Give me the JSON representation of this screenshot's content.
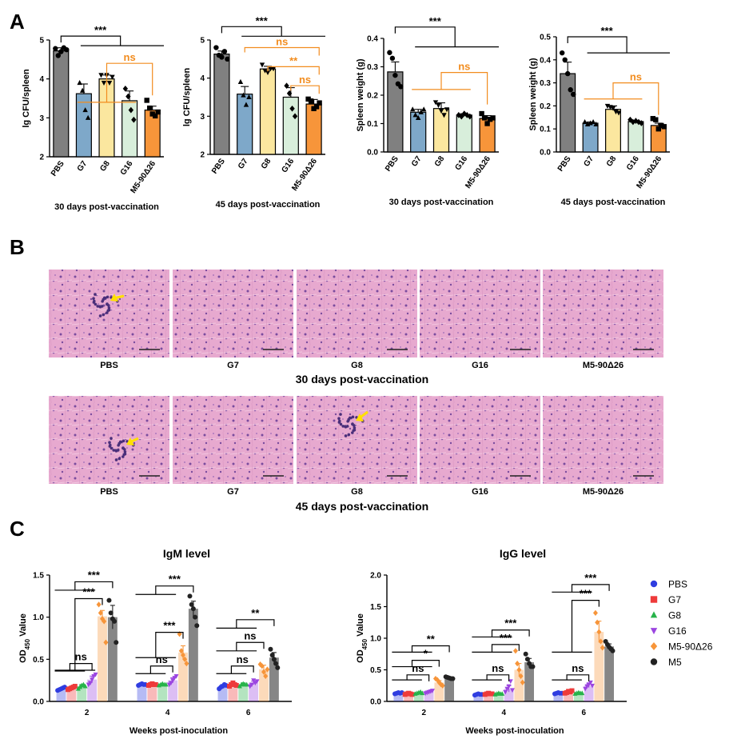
{
  "panels": {
    "a": "A",
    "b": "B",
    "c": "C"
  },
  "colors": {
    "PBS": "#808080",
    "G7": "#7ea8c9",
    "G8": "#fbe79f",
    "G16": "#d8eedb",
    "M5-90Δ26": "#f7953a",
    "orange": "#f28c1e",
    "black": "#000000",
    "c_PBS": "#2f3de0",
    "c_G7": "#ee3a3a",
    "c_G8": "#27b34a",
    "c_G16": "#9b45e0",
    "c_M5-90Δ26": "#f7953a",
    "c_M5": "#222222",
    "tissue": "#e6a6cf",
    "tissue_dark": "#6d4a9a",
    "arrow": "#ffe000"
  },
  "histology": {
    "groups": [
      "PBS",
      "G7",
      "G8",
      "G16",
      "M5-90Δ26"
    ],
    "row1_caption": "30 days post-vaccination",
    "row2_caption": "45 days post-vaccination",
    "lesion_frames": [
      "r1-PBS",
      "r2-PBS",
      "r2-G8"
    ]
  },
  "chart_data": [
    {
      "id": "a1",
      "type": "bar",
      "ylabel": "lg CFU/spleen",
      "caption": "30 days post-vaccination",
      "categories": [
        "PBS",
        "G7",
        "G8",
        "G16",
        "M5-90Δ26"
      ],
      "values": [
        4.72,
        3.62,
        4.0,
        3.44,
        3.2
      ],
      "errors": [
        0.08,
        0.25,
        0.1,
        0.25,
        0.1
      ],
      "points": [
        [
          4.78,
          4.6,
          4.7,
          4.8,
          4.75
        ],
        [
          3.9,
          3.7,
          3.2,
          3.0
        ],
        [
          4.1,
          3.9,
          4.1,
          3.9,
          4.05
        ],
        [
          3.75,
          3.55,
          3.2,
          2.95
        ],
        [
          3.45,
          3.25,
          3.1,
          3.05,
          3.15
        ]
      ],
      "markers": [
        "circle",
        "triangle",
        "invtriangle",
        "diamond",
        "square"
      ],
      "ylim": [
        2,
        5
      ],
      "yticks": [
        2,
        3,
        4,
        5
      ],
      "sig": [
        {
          "label": "***",
          "color": "black",
          "y": 5.1,
          "from": 0,
          "to": [
            1,
            2,
            3,
            4
          ]
        },
        {
          "label": "ns",
          "color": "orange",
          "y": 4.4,
          "from": 4,
          "to": [
            1,
            2,
            3
          ],
          "ly": 3.4
        }
      ]
    },
    {
      "id": "a2",
      "type": "bar",
      "ylabel": "lg CFU/spleen",
      "caption": "45 days post-vaccination",
      "categories": [
        "PBS",
        "G7",
        "G8",
        "G16",
        "M5-90Δ26"
      ],
      "values": [
        4.63,
        3.58,
        4.24,
        3.5,
        3.32
      ],
      "errors": [
        0.08,
        0.2,
        0.07,
        0.25,
        0.12
      ],
      "points": [
        [
          4.8,
          4.6,
          4.55,
          4.7,
          4.5
        ],
        [
          3.9,
          3.55,
          3.3,
          3.5
        ],
        [
          4.35,
          4.2,
          4.15,
          4.25,
          4.25
        ],
        [
          3.8,
          3.6,
          3.2,
          3.0
        ],
        [
          3.45,
          3.4,
          3.2,
          3.25,
          3.35
        ]
      ],
      "markers": [
        "circle",
        "triangle",
        "invtriangle",
        "diamond",
        "square"
      ],
      "ylim": [
        2,
        5
      ],
      "yticks": [
        2,
        3,
        4,
        5
      ],
      "sig": [
        {
          "label": "***",
          "color": "black",
          "y": 5.35,
          "from": 0,
          "to": [
            1,
            2,
            3,
            4
          ]
        },
        {
          "label": "ns",
          "color": "orange",
          "y": 4.8,
          "pair": [
            1,
            4
          ]
        },
        {
          "label": "**",
          "color": "orange",
          "y": 4.3,
          "pair": [
            2,
            4
          ]
        },
        {
          "label": "ns",
          "color": "orange",
          "y": 3.8,
          "pair": [
            3,
            4
          ]
        }
      ]
    },
    {
      "id": "a3",
      "type": "bar",
      "ylabel": "Spleen weight (g)",
      "caption": "30 days post-vaccination",
      "categories": [
        "PBS",
        "G7",
        "G8",
        "G16",
        "M5-90Δ26"
      ],
      "values": [
        0.282,
        0.14,
        0.153,
        0.13,
        0.118
      ],
      "errors": [
        0.035,
        0.01,
        0.02,
        0.005,
        0.01
      ],
      "points": [
        [
          0.35,
          0.33,
          0.27,
          0.24,
          0.23
        ],
        [
          0.15,
          0.13,
          0.12,
          0.14,
          0.15
        ],
        [
          0.175,
          0.165,
          0.145,
          0.13,
          0.15
        ],
        [
          0.13,
          0.125,
          0.135,
          0.13,
          0.125
        ],
        [
          0.135,
          0.12,
          0.1,
          0.115,
          0.12
        ]
      ],
      "markers": [
        "circle",
        "triangle",
        "invtriangle",
        "diamond",
        "square"
      ],
      "ylim": [
        0,
        0.4
      ],
      "yticks": [
        0.0,
        0.1,
        0.2,
        0.3,
        0.4
      ],
      "tickfmt": 1,
      "sig": [
        {
          "label": "***",
          "color": "black",
          "y": 0.44,
          "from": 0,
          "to": [
            1,
            2,
            3,
            4
          ],
          "ly": 0.37
        },
        {
          "label": "ns",
          "color": "orange",
          "y": 0.28,
          "from": 4,
          "to": [
            1,
            2,
            3
          ],
          "ly": 0.22
        }
      ]
    },
    {
      "id": "a4",
      "type": "bar",
      "ylabel": "Spleen weight (g)",
      "caption": "45 days post-vaccination",
      "categories": [
        "PBS",
        "G7",
        "G8",
        "G16",
        "M5-90Δ26"
      ],
      "values": [
        0.34,
        0.125,
        0.185,
        0.132,
        0.115
      ],
      "errors": [
        0.05,
        0.005,
        0.015,
        0.005,
        0.01
      ],
      "points": [
        [
          0.43,
          0.4,
          0.34,
          0.27,
          0.25
        ],
        [
          0.13,
          0.12,
          0.125,
          0.13,
          0.12
        ],
        [
          0.2,
          0.195,
          0.19,
          0.175,
          0.17
        ],
        [
          0.14,
          0.13,
          0.135,
          0.13,
          0.125
        ],
        [
          0.145,
          0.14,
          0.1,
          0.115,
          0.11
        ]
      ],
      "markers": [
        "circle",
        "triangle",
        "invtriangle",
        "diamond",
        "square"
      ],
      "ylim": [
        0,
        0.5
      ],
      "yticks": [
        0.0,
        0.1,
        0.2,
        0.3,
        0.4,
        0.5
      ],
      "tickfmt": 1,
      "sig": [
        {
          "label": "***",
          "color": "black",
          "y": 0.5,
          "from": 0,
          "to": [
            1,
            2,
            3,
            4
          ],
          "ly": 0.43
        },
        {
          "label": "ns",
          "color": "orange",
          "y": 0.3,
          "from": 4,
          "to": [
            1,
            2,
            3
          ],
          "ly": 0.23
        }
      ]
    },
    {
      "id": "c1",
      "type": "bar",
      "title": "IgM level",
      "ylabel": "OD450 Value",
      "ylabel_main": "OD",
      "ylabel_sub": "450",
      "ylabel_tail": " Value",
      "xlabel": "Weeks post-inoculation",
      "weeks": [
        "2",
        "4",
        "6"
      ],
      "series": [
        "PBS",
        "G7",
        "G8",
        "G16",
        "M5-90Δ26",
        "M5"
      ],
      "values": [
        [
          0.15,
          0.16,
          0.18,
          0.26,
          1.01,
          1.0
        ],
        [
          0.2,
          0.2,
          0.2,
          0.25,
          0.58,
          1.1
        ],
        [
          0.18,
          0.2,
          0.2,
          0.22,
          0.38,
          0.52
        ]
      ],
      "errors": [
        [
          0.01,
          0.02,
          0.02,
          0.04,
          0.07,
          0.14
        ],
        [
          0.01,
          0.01,
          0.01,
          0.03,
          0.08,
          0.09
        ],
        [
          0.02,
          0.02,
          0.02,
          0.02,
          0.05,
          0.06
        ]
      ],
      "points": [
        [
          [
            0.13,
            0.14,
            0.15,
            0.16,
            0.17
          ],
          [
            0.14,
            0.15,
            0.16,
            0.17,
            0.18
          ],
          [
            0.15,
            0.17,
            0.19,
            0.2,
            0.18
          ],
          [
            0.2,
            0.22,
            0.26,
            0.3,
            0.32
          ],
          [
            1.15,
            1.05,
            0.98,
            0.95,
            0.7
          ],
          [
            1.2,
            1.05,
            0.98,
            0.95,
            0.7
          ]
        ],
        [
          [
            0.19,
            0.2,
            0.21,
            0.2,
            0.2
          ],
          [
            0.19,
            0.2,
            0.21,
            0.2,
            0.2
          ],
          [
            0.19,
            0.2,
            0.21,
            0.2,
            0.2
          ],
          [
            0.2,
            0.22,
            0.25,
            0.28,
            0.3
          ],
          [
            0.8,
            0.6,
            0.55,
            0.5,
            0.45
          ],
          [
            1.25,
            1.15,
            1.1,
            1.0,
            0.9
          ]
        ],
        [
          [
            0.15,
            0.17,
            0.18,
            0.2,
            0.19
          ],
          [
            0.18,
            0.2,
            0.22,
            0.2,
            0.19
          ],
          [
            0.18,
            0.2,
            0.21,
            0.2,
            0.2
          ],
          [
            0.18,
            0.2,
            0.25,
            0.22,
            0.24
          ],
          [
            0.44,
            0.42,
            0.35,
            0.3,
            0.38
          ],
          [
            0.62,
            0.55,
            0.5,
            0.45,
            0.4
          ]
        ]
      ],
      "markers": [
        "circle",
        "square",
        "triangle",
        "invtriangle",
        "diamond",
        "circle"
      ],
      "ylim": [
        0,
        1.5
      ],
      "yticks": [
        0.0,
        0.5,
        1.0,
        1.5
      ],
      "tickfmt": 1,
      "sig": [
        {
          "week": 0,
          "label": "ns",
          "y": 0.45,
          "y_from": 0.36,
          "from": [
            0,
            1,
            2
          ],
          "to": 3
        },
        {
          "week": 0,
          "label": "***",
          "y": 1.22,
          "y_from": 0.37,
          "from": [
            0,
            1,
            2,
            3
          ],
          "to": 4
        },
        {
          "week": 0,
          "label": "***",
          "y": 1.42,
          "y_from": 1.32,
          "from": [
            0,
            1,
            2,
            3
          ],
          "to": 5
        },
        {
          "week": 1,
          "label": "ns",
          "y": 0.42,
          "y_from": 0.33,
          "from": [
            0,
            1,
            2
          ],
          "to": 3
        },
        {
          "week": 1,
          "label": "***",
          "y": 0.82,
          "y_from": 0.52,
          "from": [
            0,
            1,
            2,
            3
          ],
          "to": 4
        },
        {
          "week": 1,
          "label": "***",
          "y": 1.37,
          "y_from": 1.27,
          "from": [
            0,
            1,
            2,
            3
          ],
          "to": 5
        },
        {
          "week": 2,
          "label": "ns",
          "y": 0.42,
          "y_from": 0.33,
          "from": [
            0,
            1,
            2
          ],
          "to": 3
        },
        {
          "week": 2,
          "label": "ns",
          "y": 0.7,
          "y_from": 0.6,
          "from": [
            0,
            1,
            2,
            3
          ],
          "to": 4
        },
        {
          "week": 2,
          "label": "**",
          "y": 0.97,
          "y_from": 0.87,
          "from": [
            0,
            1,
            2,
            3
          ],
          "to": 5
        }
      ]
    },
    {
      "id": "c2",
      "type": "bar",
      "title": "IgG level",
      "ylabel": "OD450 Value",
      "ylabel_main": "OD",
      "ylabel_sub": "450",
      "ylabel_tail": " Value",
      "xlabel": "Weeks post-inoculation",
      "weeks": [
        "2",
        "4",
        "6"
      ],
      "series": [
        "PBS",
        "G7",
        "G8",
        "G16",
        "M5-90Δ26",
        "M5"
      ],
      "values": [
        [
          0.13,
          0.12,
          0.13,
          0.15,
          0.3,
          0.37
        ],
        [
          0.11,
          0.12,
          0.12,
          0.2,
          0.5,
          0.62
        ],
        [
          0.13,
          0.15,
          0.13,
          0.25,
          1.1,
          0.87
        ]
      ],
      "errors": [
        [
          0.01,
          0.01,
          0.01,
          0.01,
          0.03,
          0.02
        ],
        [
          0.01,
          0.01,
          0.01,
          0.05,
          0.1,
          0.06
        ],
        [
          0.01,
          0.02,
          0.01,
          0.03,
          0.17,
          0.04
        ]
      ],
      "points": [
        [
          [
            0.12,
            0.13,
            0.14,
            0.13,
            0.14
          ],
          [
            0.11,
            0.12,
            0.13,
            0.12,
            0.11
          ],
          [
            0.12,
            0.13,
            0.14,
            0.15,
            0.13
          ],
          [
            0.13,
            0.14,
            0.15,
            0.16,
            0.17
          ],
          [
            0.36,
            0.34,
            0.3,
            0.27,
            0.25
          ],
          [
            0.39,
            0.38,
            0.37,
            0.36,
            0.36
          ]
        ],
        [
          [
            0.1,
            0.11,
            0.12,
            0.11,
            0.11
          ],
          [
            0.11,
            0.12,
            0.13,
            0.12,
            0.12
          ],
          [
            0.11,
            0.12,
            0.13,
            0.12,
            0.12
          ],
          [
            0.15,
            0.2,
            0.24,
            0.32,
            0.18
          ],
          [
            0.8,
            0.6,
            0.5,
            0.4,
            0.3
          ],
          [
            0.75,
            0.67,
            0.6,
            0.55,
            0.55
          ]
        ],
        [
          [
            0.12,
            0.13,
            0.14,
            0.13,
            0.13
          ],
          [
            0.13,
            0.14,
            0.16,
            0.15,
            0.17
          ],
          [
            0.12,
            0.13,
            0.14,
            0.13,
            0.13
          ],
          [
            0.2,
            0.24,
            0.27,
            0.3,
            0.25
          ],
          [
            1.4,
            1.25,
            1.1,
            0.95,
            0.85
          ],
          [
            0.95,
            0.9,
            0.86,
            0.83,
            0.8
          ]
        ]
      ],
      "markers": [
        "circle",
        "square",
        "triangle",
        "invtriangle",
        "diamond",
        "circle"
      ],
      "ylim": [
        0,
        2.0
      ],
      "yticks": [
        0.0,
        0.5,
        1.0,
        1.5,
        2.0
      ],
      "tickfmt": 1,
      "sig": [
        {
          "week": 0,
          "label": "ns",
          "y": 0.42,
          "y_from": 0.34,
          "from": [
            0,
            1,
            2
          ],
          "to": 3
        },
        {
          "week": 0,
          "label": "*",
          "y": 0.65,
          "y_from": 0.55,
          "from": [
            0,
            1,
            2,
            3
          ],
          "to": 4
        },
        {
          "week": 0,
          "label": "**",
          "y": 0.88,
          "y_from": 0.78,
          "from": [
            0,
            1,
            2,
            3
          ],
          "to": 5
        },
        {
          "week": 1,
          "label": "ns",
          "y": 0.42,
          "y_from": 0.34,
          "from": [
            0,
            1,
            2
          ],
          "to": 3
        },
        {
          "week": 1,
          "label": "***",
          "y": 0.9,
          "y_from": 0.78,
          "from": [
            0,
            1,
            2,
            3
          ],
          "to": 4
        },
        {
          "week": 1,
          "label": "***",
          "y": 1.13,
          "y_from": 1.02,
          "from": [
            0,
            1,
            2,
            3
          ],
          "to": 5
        },
        {
          "week": 2,
          "label": "ns",
          "y": 0.42,
          "y_from": 0.34,
          "from": [
            0,
            1,
            2
          ],
          "to": 3
        },
        {
          "week": 2,
          "label": "***",
          "y": 1.6,
          "y_from": 0.78,
          "from": [
            0,
            1,
            2,
            3
          ],
          "to": 4
        },
        {
          "week": 2,
          "label": "***",
          "y": 1.85,
          "y_from": 1.73,
          "from": [
            0,
            1,
            2,
            3
          ],
          "to": 5
        }
      ],
      "legend": [
        "PBS",
        "G7",
        "G8",
        "G16",
        "M5-90Δ26",
        "M5"
      ]
    }
  ]
}
